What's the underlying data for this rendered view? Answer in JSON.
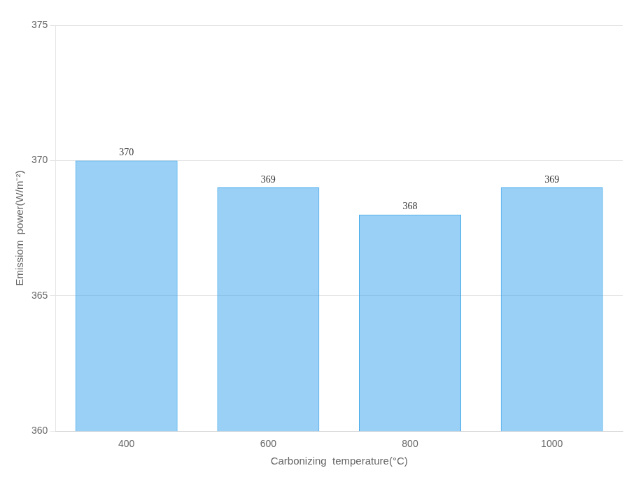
{
  "chart_data": {
    "type": "bar",
    "categories": [
      "400",
      "600",
      "800",
      "1000"
    ],
    "values": [
      370,
      369,
      368,
      369
    ],
    "xlabel": "Carbonizing  temperature(°C)",
    "ylabel": "Emissiom  power(W/m⁻²)",
    "ylim": [
      360,
      375
    ],
    "yticks": [
      360,
      365,
      370,
      375
    ],
    "grid": true,
    "data_labels": true
  }
}
